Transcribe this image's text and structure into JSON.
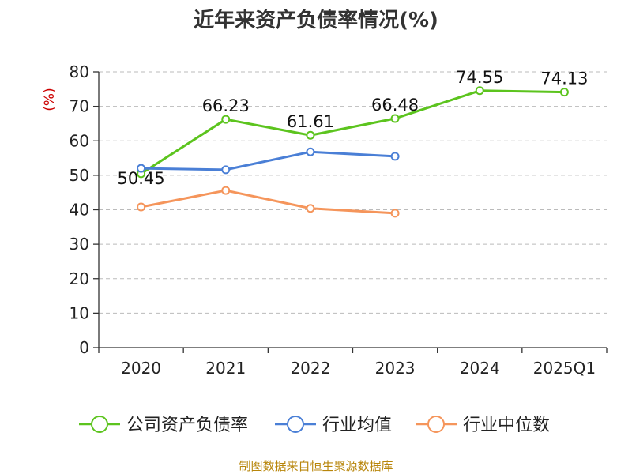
{
  "chart_data": {
    "type": "line",
    "title": "近年来资产负债率情况(%)",
    "ylabel": "(%)",
    "xlabel": "",
    "categories": [
      "2020",
      "2021",
      "2022",
      "2023",
      "2024",
      "2025Q1"
    ],
    "ylim": [
      0,
      80
    ],
    "yticks": [
      0,
      10,
      20,
      30,
      40,
      50,
      60,
      70,
      80
    ],
    "grid": true,
    "legend_position": "bottom",
    "series": [
      {
        "name": "公司资产负债率",
        "color": "#5cc41e",
        "values": [
          50.45,
          66.23,
          61.61,
          66.48,
          74.55,
          74.13
        ],
        "labels": [
          "50.45",
          "66.23",
          "61.61",
          "66.48",
          "74.55",
          "74.13"
        ]
      },
      {
        "name": "行业均值",
        "color": "#4a7fd6",
        "values": [
          52.0,
          51.6,
          56.8,
          55.5,
          null,
          null
        ]
      },
      {
        "name": "行业中位数",
        "color": "#f5955b",
        "values": [
          40.8,
          45.6,
          40.4,
          39.0,
          null,
          null
        ]
      }
    ]
  },
  "source": "制图数据来自恒生聚源数据库"
}
